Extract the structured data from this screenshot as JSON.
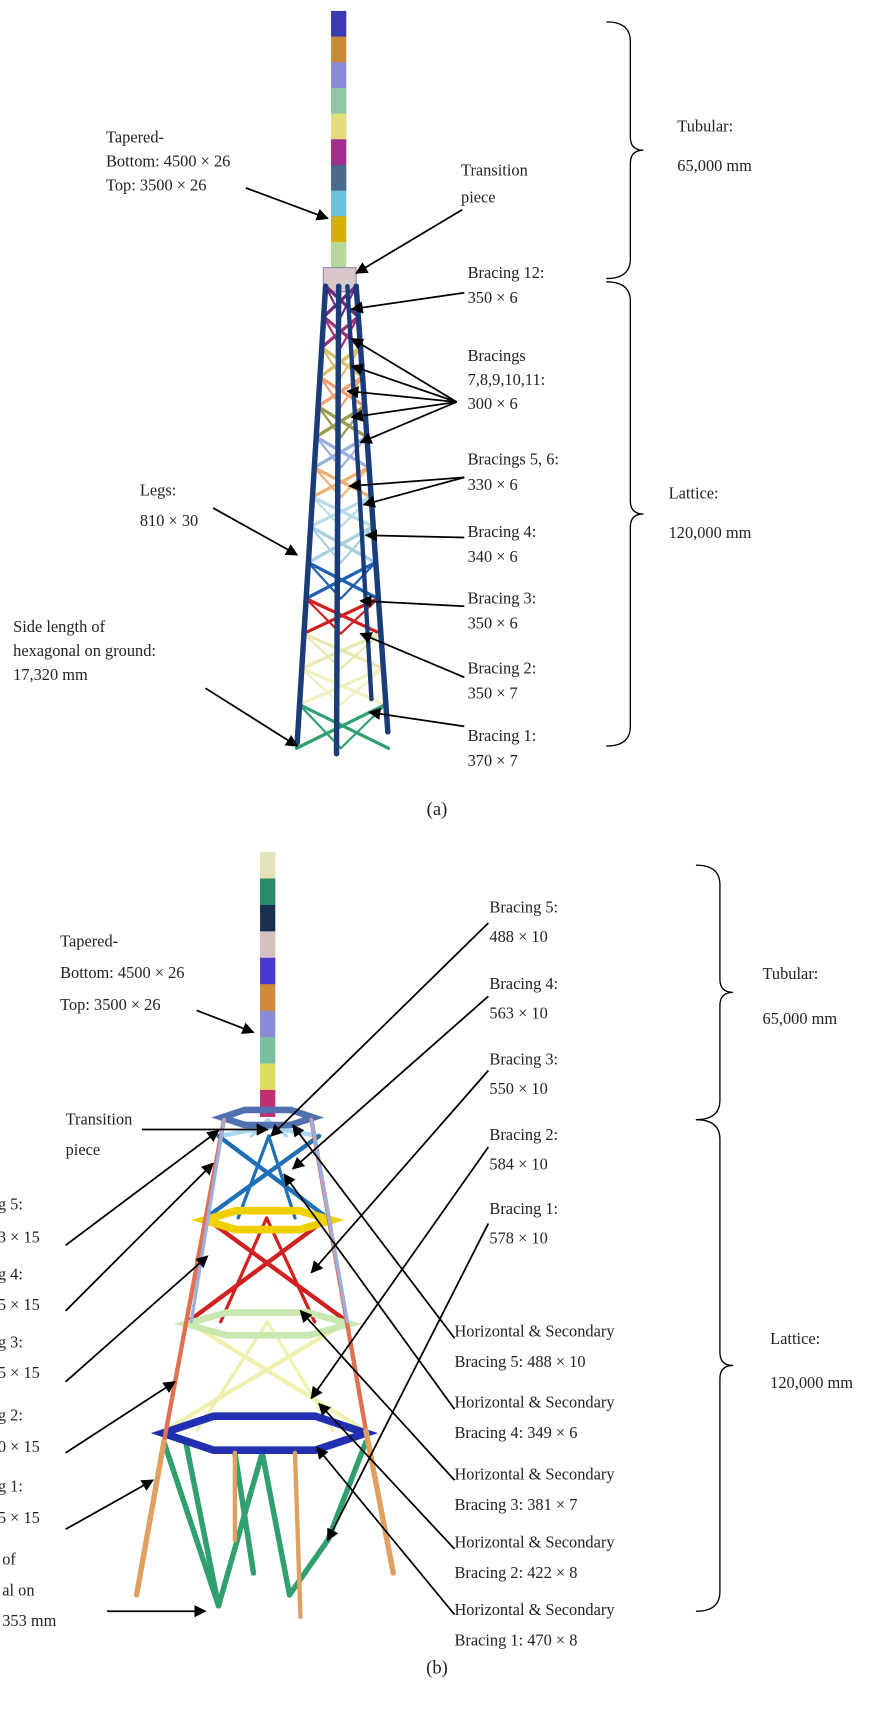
{
  "panels": [
    {
      "caption": "(a)",
      "labels": [
        {
          "lines": [
            "Tapered-",
            "Bottom: 4500 × 26",
            "Top: 3500 × 26"
          ]
        },
        {
          "lines": [
            "Transition",
            "piece"
          ]
        },
        {
          "lines": [
            "Tubular:",
            "65,000 mm"
          ]
        },
        {
          "lines": [
            "Bracing 12:",
            "350 × 6"
          ]
        },
        {
          "lines": [
            "Bracings",
            "7,8,9,10,11:",
            "300 × 6"
          ]
        },
        {
          "lines": [
            "Bracings 5, 6:",
            "330 × 6"
          ]
        },
        {
          "lines": [
            "Legs:",
            "810 × 30"
          ]
        },
        {
          "lines": [
            "Lattice:",
            "120,000 mm"
          ]
        },
        {
          "lines": [
            "Bracing 4:",
            "340 × 6"
          ]
        },
        {
          "lines": [
            "Bracing 3:",
            "350 × 6"
          ]
        },
        {
          "lines": [
            "Side length of",
            "hexagonal on ground:",
            "17,320 mm"
          ]
        },
        {
          "lines": [
            "Bracing 2:",
            "350 × 7"
          ]
        },
        {
          "lines": [
            "Bracing 1:",
            "370 × 7"
          ]
        }
      ]
    },
    {
      "caption": "(b)",
      "labels": [
        {
          "lines": [
            "Bracing 5:",
            "488 × 10"
          ]
        },
        {
          "lines": [
            "Tapered-",
            "Bottom: 4500 × 26",
            "Top: 3500 × 26"
          ]
        },
        {
          "lines": [
            "Tubular:",
            "65,000 mm"
          ]
        },
        {
          "lines": [
            "Bracing 4:",
            "563 × 10"
          ]
        },
        {
          "lines": [
            "Bracing 3:",
            "550 × 10"
          ]
        },
        {
          "lines": [
            "Transition",
            "piece"
          ]
        },
        {
          "lines": [
            "Bracing 2:",
            "584 × 10"
          ]
        },
        {
          "lines": [
            "Bracing 1:",
            "578 × 10"
          ]
        },
        {
          "lines": [
            "g 5:",
            "3 × 15"
          ]
        },
        {
          "lines": [
            "g 4:",
            "5 × 15"
          ]
        },
        {
          "lines": [
            "Horizontal & Secondary",
            "Bracing 5: 488 × 10"
          ]
        },
        {
          "lines": [
            "Lattice:",
            "120,000 mm"
          ]
        },
        {
          "lines": [
            "g 3:",
            "5 × 15"
          ]
        },
        {
          "lines": [
            "Horizontal & Secondary",
            "Bracing 4: 349 × 6"
          ]
        },
        {
          "lines": [
            "g 2:",
            "0 × 15"
          ]
        },
        {
          "lines": [
            "Horizontal & Secondary",
            "Bracing 3: 381 × 7"
          ]
        },
        {
          "lines": [
            "g 1:",
            "5 × 15"
          ]
        },
        {
          "lines": [
            "Horizontal & Secondary",
            "Bracing 2: 422 × 8"
          ]
        },
        {
          "lines": [
            "of",
            "al on",
            "353 mm"
          ]
        },
        {
          "lines": [
            "Horizontal & Secondary",
            "Bracing 1: 470 × 8"
          ]
        }
      ]
    }
  ]
}
